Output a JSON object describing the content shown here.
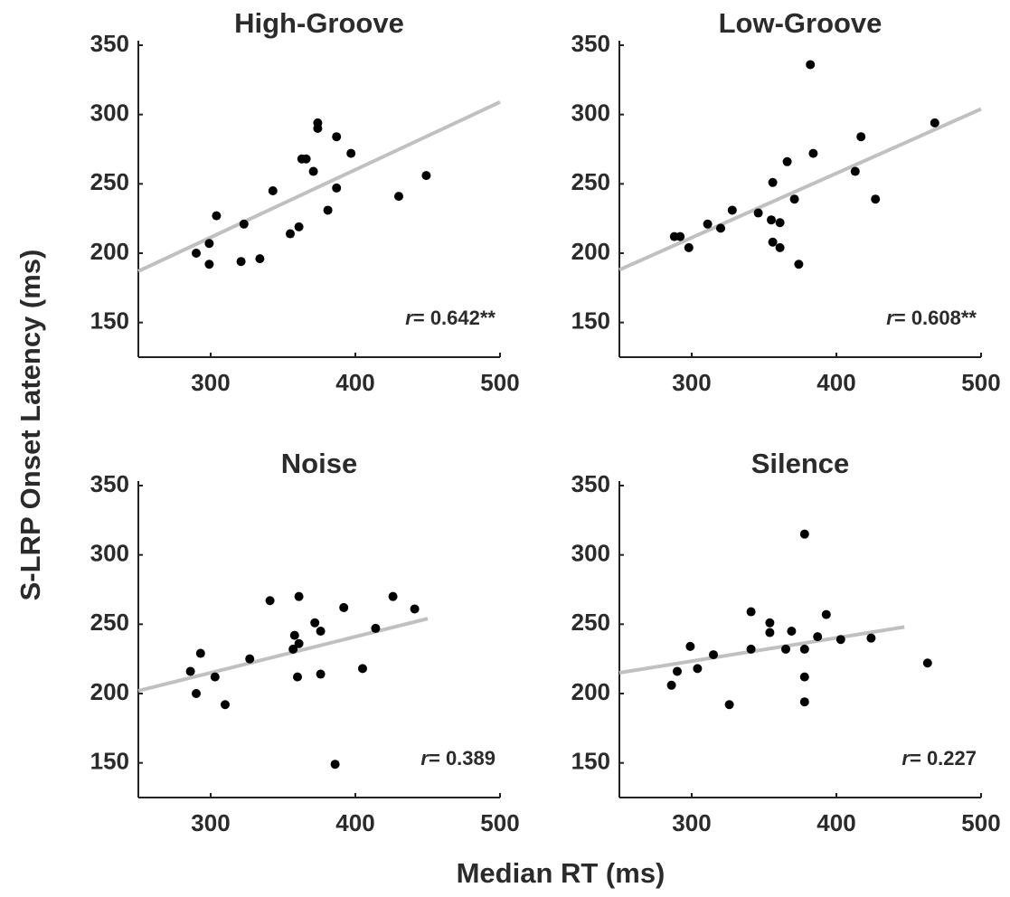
{
  "xlabel": "Median RT (ms)",
  "ylabel": "S-LRP Onset Latency (ms)",
  "chart_data": [
    {
      "type": "scatter",
      "title": "High-Groove",
      "annotation_symbol": "r",
      "annotation": "= 0.642**",
      "x": [
        290,
        299,
        299,
        304,
        323,
        321,
        334,
        343,
        355,
        361,
        363,
        366,
        371,
        374,
        374,
        387,
        397,
        387,
        381,
        430,
        449
      ],
      "y": [
        200,
        207,
        192,
        227,
        221,
        194,
        196,
        245,
        214,
        219,
        268,
        268,
        259,
        294,
        290,
        284,
        272,
        247,
        231,
        241,
        256
      ],
      "color": "#000000",
      "fit": {
        "x": [
          250,
          500
        ],
        "y": [
          187,
          309
        ],
        "color": "#c0c0c0"
      },
      "xlim": [
        250,
        500
      ],
      "ylim": [
        125,
        350
      ],
      "xticks": [
        300,
        400,
        500
      ],
      "yticks": [
        150,
        200,
        250,
        300,
        350
      ]
    },
    {
      "type": "scatter",
      "title": "Low-Groove",
      "annotation_symbol": "r",
      "annotation": "= 0.608**",
      "x": [
        288,
        292,
        298,
        311,
        320,
        328,
        346,
        356,
        355,
        361,
        356,
        361,
        366,
        371,
        374,
        382,
        384,
        413,
        417,
        427,
        468
      ],
      "y": [
        212,
        212,
        204,
        221,
        218,
        231,
        229,
        251,
        224,
        222,
        208,
        204,
        266,
        239,
        192,
        336,
        272,
        259,
        284,
        239,
        294
      ],
      "color": "#000000",
      "fit": {
        "x": [
          250,
          500
        ],
        "y": [
          188,
          304
        ],
        "color": "#c0c0c0"
      },
      "xlim": [
        250,
        500
      ],
      "ylim": [
        125,
        350
      ],
      "xticks": [
        300,
        400,
        500
      ],
      "yticks": [
        150,
        200,
        250,
        300,
        350
      ]
    },
    {
      "type": "scatter",
      "title": "Noise",
      "annotation_symbol": "r",
      "annotation": "= 0.389",
      "x": [
        286,
        293,
        290,
        303,
        310,
        327,
        341,
        361,
        357,
        358,
        361,
        360,
        372,
        376,
        376,
        386,
        392,
        414,
        405,
        426,
        441
      ],
      "y": [
        216,
        229,
        200,
        212,
        192,
        225,
        267,
        270,
        232,
        242,
        236,
        212,
        251,
        245,
        214,
        149,
        262,
        247,
        218,
        270,
        261
      ],
      "color": "#000000",
      "fit": {
        "x": [
          250,
          450
        ],
        "y": [
          202,
          254
        ],
        "color": "#c0c0c0"
      },
      "xlim": [
        250,
        500
      ],
      "ylim": [
        125,
        350
      ],
      "xticks": [
        300,
        400,
        500
      ],
      "yticks": [
        150,
        200,
        250,
        300,
        350
      ]
    },
    {
      "type": "scatter",
      "title": "Silence",
      "annotation_symbol": "r",
      "annotation": "= 0.227",
      "x": [
        286,
        290,
        299,
        304,
        315,
        326,
        341,
        341,
        354,
        354,
        365,
        369,
        378,
        378,
        378,
        378,
        387,
        393,
        403,
        424,
        463
      ],
      "y": [
        206,
        216,
        234,
        218,
        228,
        192,
        259,
        232,
        251,
        244,
        232,
        245,
        232,
        315,
        212,
        194,
        241,
        257,
        239,
        240,
        222
      ],
      "color": "#000000",
      "fit": {
        "x": [
          250,
          447
        ],
        "y": [
          215,
          248
        ],
        "color": "#c0c0c0"
      },
      "xlim": [
        250,
        500
      ],
      "ylim": [
        125,
        350
      ],
      "xticks": [
        300,
        400,
        500
      ],
      "yticks": [
        150,
        200,
        250,
        300,
        350
      ]
    }
  ]
}
